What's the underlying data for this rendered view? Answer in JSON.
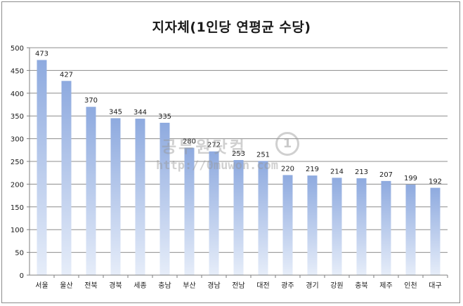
{
  "chart_data": {
    "type": "bar",
    "title": "지자체(1인당 연평균 수당)",
    "xlabel": "",
    "ylabel": "",
    "categories": [
      "서울",
      "울산",
      "전북",
      "경북",
      "세종",
      "충남",
      "부산",
      "경남",
      "전남",
      "대전",
      "광주",
      "경기",
      "강원",
      "충북",
      "제주",
      "인천",
      "대구"
    ],
    "series": [
      {
        "values": [
          473,
          427,
          370,
          345,
          344,
          335,
          280,
          272,
          253,
          251,
          220,
          219,
          214,
          213,
          207,
          199,
          192
        ]
      }
    ],
    "ylim": [
      0,
      500
    ],
    "yticks": [
      0,
      50,
      100,
      150,
      200,
      250,
      300,
      350,
      400,
      450,
      500
    ],
    "grid": true,
    "legend": "none",
    "data_labels": true,
    "colors": {
      "bar_top": "#8eaadf",
      "bar_bottom": "#e6edf9",
      "grid": "#8c8c8c",
      "axis": "#7f7f7f"
    }
  },
  "watermark": {
    "line1": "공무원닷컴",
    "line2": "http://0muwon.com",
    "seal": "1"
  }
}
